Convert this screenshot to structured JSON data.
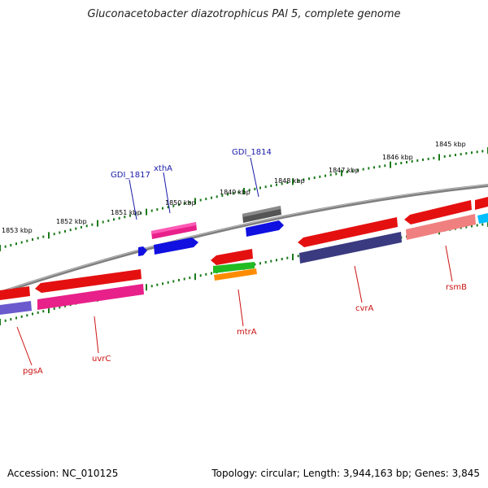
{
  "title": "Gluconacetobacter diazotrophicus PAl 5, complete genome",
  "footer": {
    "accession": "Accession: NC_010125",
    "stats": "Topology: circular; Length: 3,944,163 bp; Genes: 3,845"
  },
  "kbp_labels": [
    "1845 kbp",
    "1846 kbp",
    "1847 kbp",
    "1848 kbp",
    "1849 kbp",
    "1850 kbp",
    "1851 kbp",
    "1852 kbp",
    "1853 kbp"
  ],
  "gene_labels_forward": [
    "GDI_1817",
    "xthA",
    "GDI_1814"
  ],
  "gene_labels_reverse": [
    "pgsA",
    "uvrC",
    "mtrA",
    "cvrA",
    "rsmB"
  ],
  "colors": {
    "backbone": "#888888",
    "tick": "#1a7a1a",
    "forward_label": "#1a1aaa",
    "reverse_label": "#cc1111",
    "red": "#e41010",
    "blue": "#1010e0",
    "pink": "#e8208a",
    "navy": "#3a3a80",
    "violet": "#6a5acd",
    "salmon": "#f08080",
    "gray": "#555555",
    "green": "#22bb22",
    "orange": "#ff8c00",
    "cyan": "#00bfff"
  }
}
